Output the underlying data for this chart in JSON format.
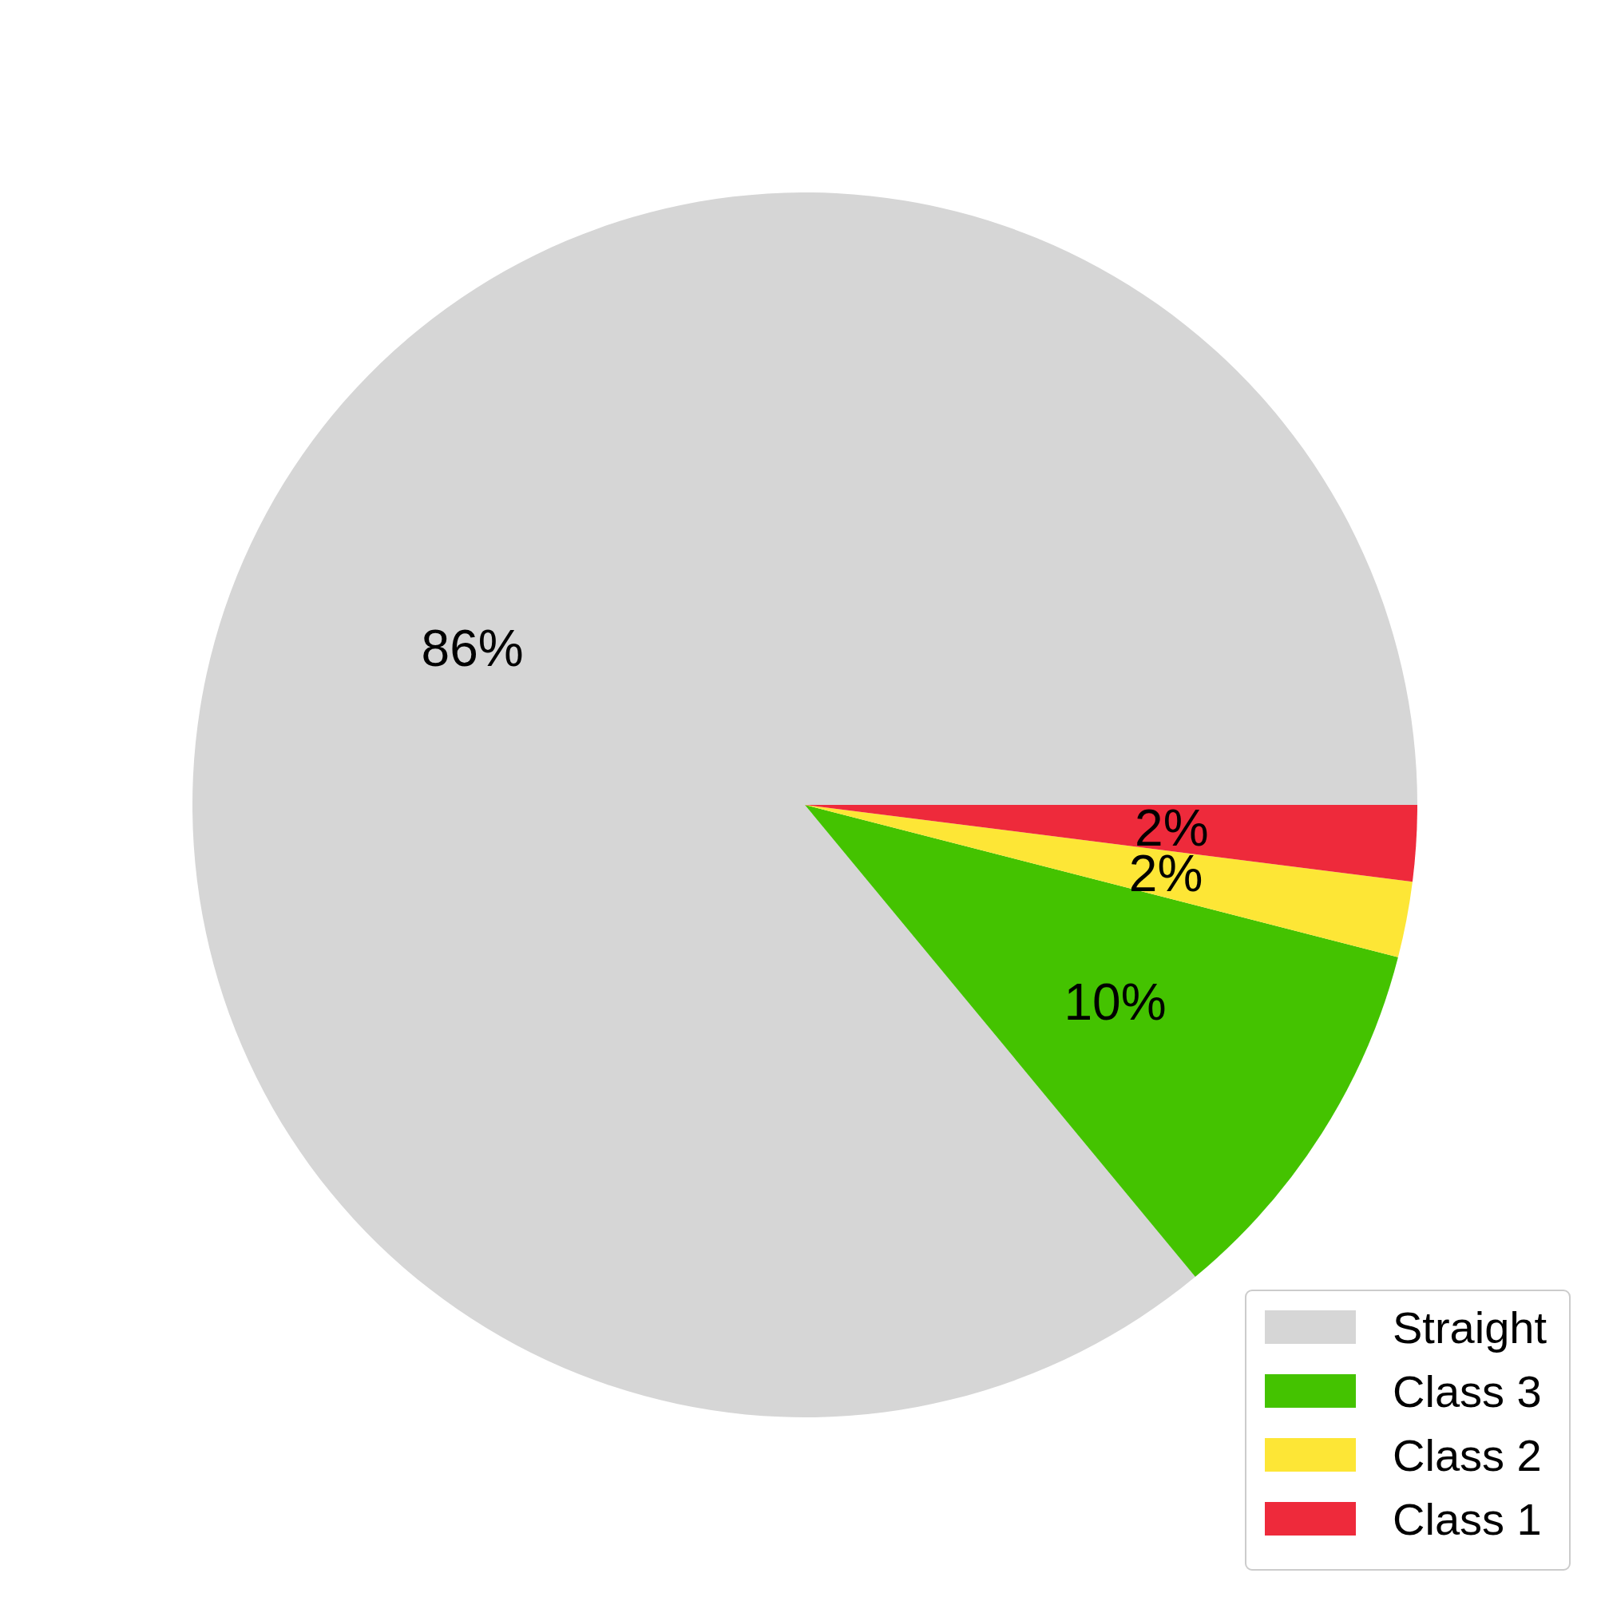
{
  "chart_data": {
    "type": "pie",
    "categories": [
      "Straight",
      "Class 3",
      "Class 2",
      "Class 1"
    ],
    "values": [
      86,
      10,
      2,
      2
    ],
    "colors": [
      "#d6d6d6",
      "#44c300",
      "#fde636",
      "#ee2a3b"
    ],
    "value_labels": [
      "86%",
      "10%",
      "2%",
      "2%"
    ],
    "legend": "bottom right"
  }
}
